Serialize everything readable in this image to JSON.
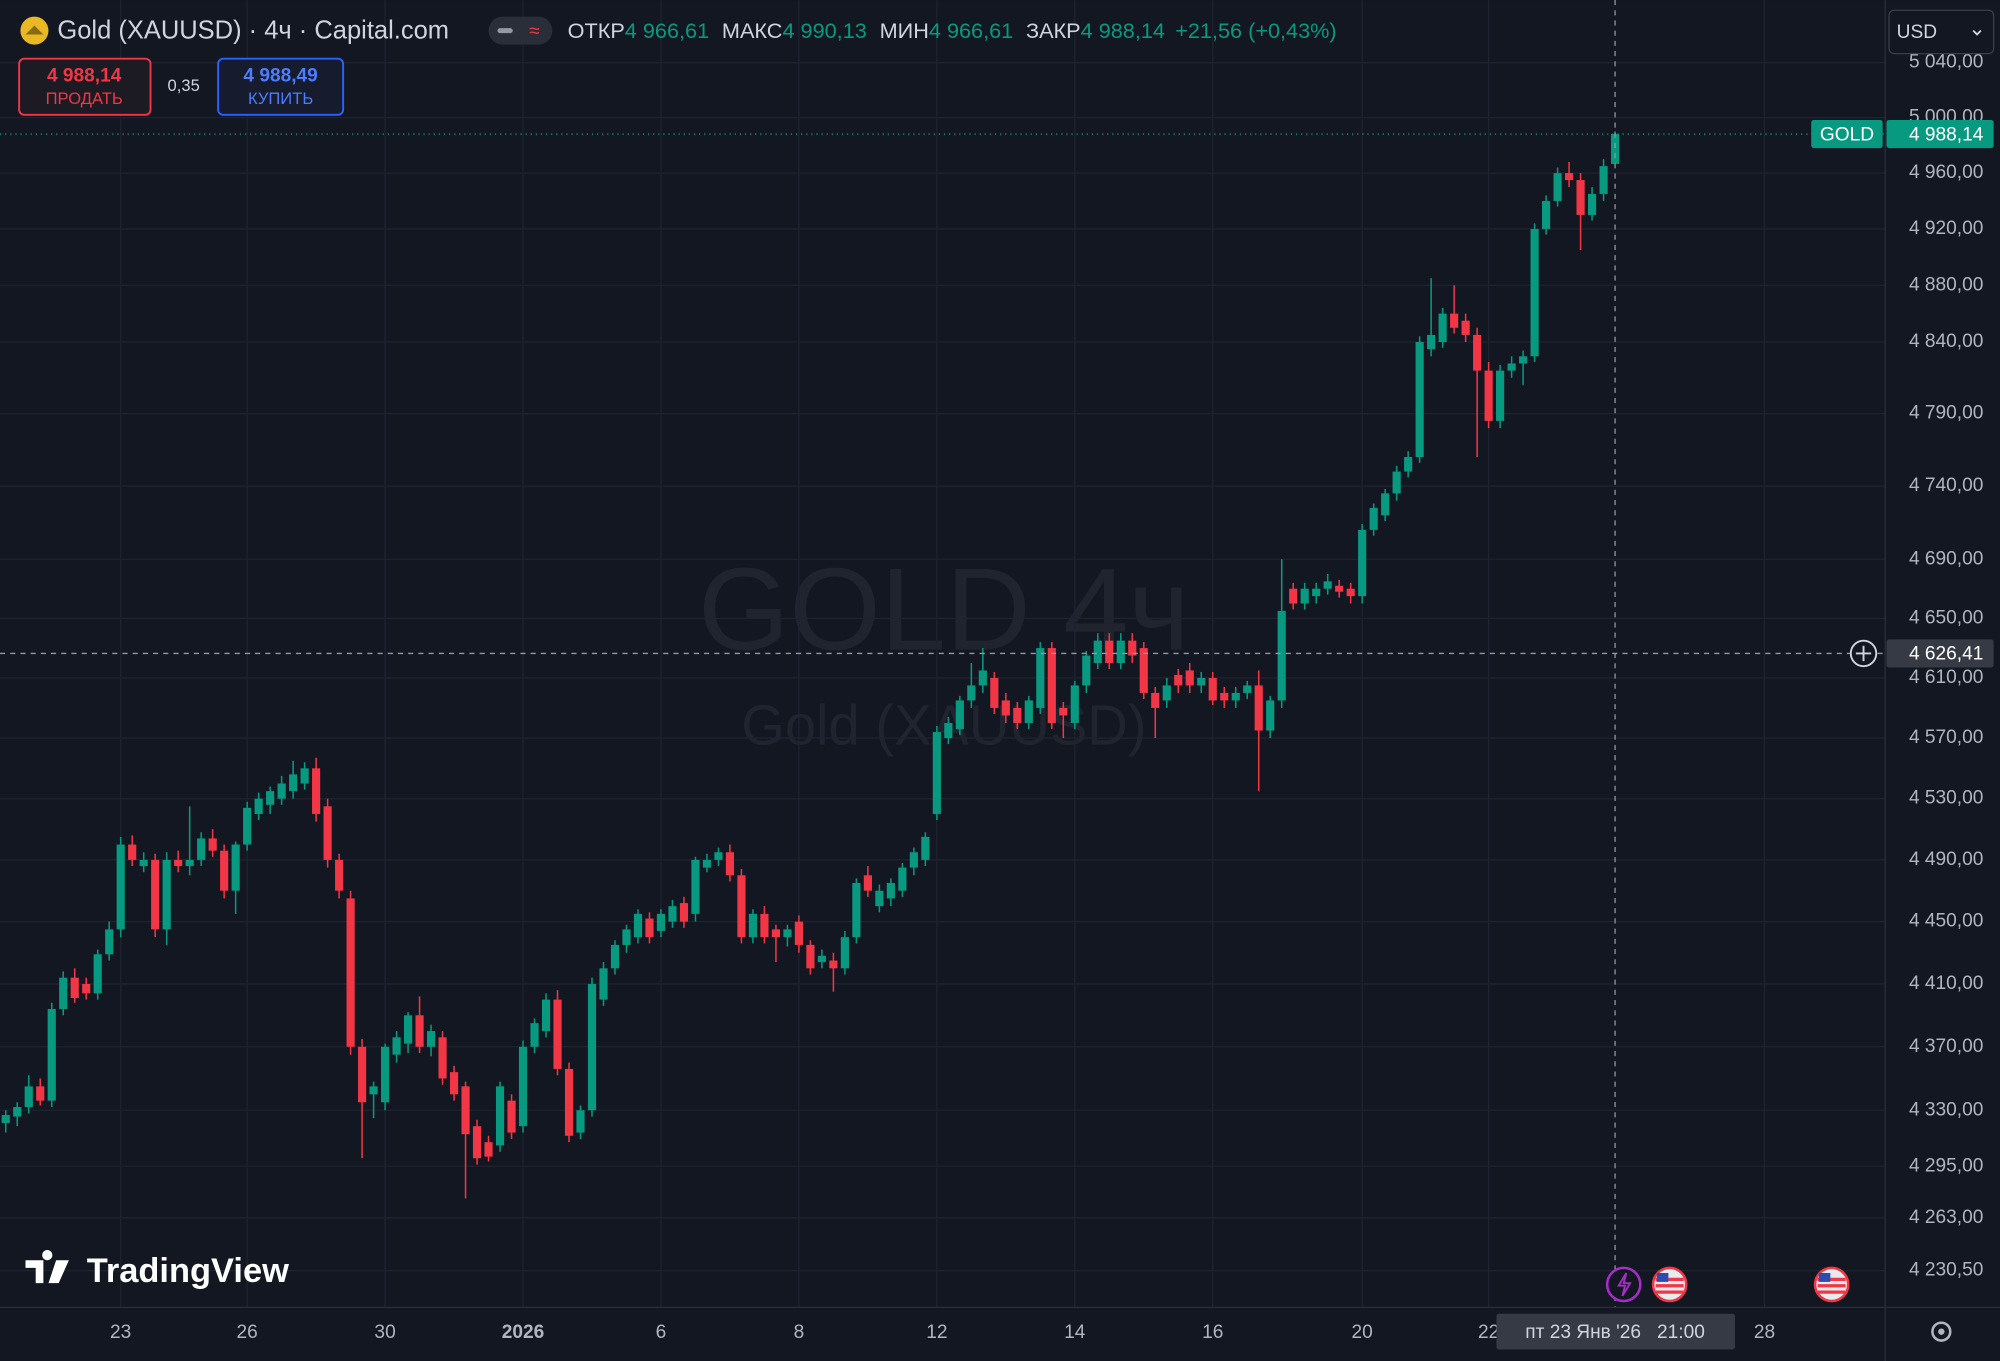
{
  "header": {
    "symbol": "Gold (XAUUSD) · 4ч · Capital.com",
    "stats": [
      {
        "label": "ОТКР",
        "value": "4 966,61"
      },
      {
        "label": "МАКС",
        "value": "4 990,13"
      },
      {
        "label": "МИН",
        "value": "4 966,61"
      },
      {
        "label": "ЗАКР",
        "value": "4 988,14"
      }
    ],
    "change": "+21,56 (+0,43%)"
  },
  "trade": {
    "sell_price": "4 988,14",
    "sell_label": "ПРОДАТЬ",
    "spread": "0,35",
    "buy_price": "4 988,49",
    "buy_label": "КУПИТЬ"
  },
  "currency": "USD",
  "watermark": {
    "title": "GOLD 4ч",
    "subtitle": "Gold (XAUUSD)"
  },
  "brand": "TradingView",
  "chart_data": {
    "type": "candlestick",
    "categories": [
      null,
      null,
      null,
      null,
      null,
      null,
      null,
      null,
      null,
      null,
      "23",
      null,
      null,
      null,
      null,
      null,
      null,
      null,
      null,
      null,
      null,
      "26",
      null,
      null,
      null,
      null,
      null,
      null,
      null,
      null,
      null,
      null,
      null,
      "30",
      null,
      null,
      null,
      null,
      null,
      null,
      null,
      null,
      null,
      null,
      null,
      "2026",
      null,
      null,
      null,
      null,
      null,
      null,
      null,
      null,
      null,
      null,
      null,
      "6",
      null,
      null,
      null,
      null,
      null,
      null,
      null,
      null,
      null,
      null,
      null,
      "8",
      null,
      null,
      null,
      null,
      null,
      null,
      null,
      null,
      null,
      null,
      null,
      "12",
      null,
      null,
      null,
      null,
      null,
      null,
      null,
      null,
      null,
      null,
      null,
      "14",
      null,
      null,
      null,
      null,
      null,
      null,
      null,
      null,
      null,
      null,
      null,
      "16",
      null,
      null,
      null,
      null,
      null,
      null,
      null,
      null,
      null,
      null,
      null,
      null,
      "20",
      null,
      null,
      null,
      null,
      null,
      null,
      null,
      null,
      null,
      null,
      "22",
      null,
      null,
      null,
      null,
      null,
      null,
      null,
      null,
      null,
      null,
      null,
      null,
      null,
      null,
      null,
      null,
      null,
      null,
      null,
      null,
      null,
      null,
      null,
      "28",
      null,
      null,
      null,
      null,
      null,
      null,
      null,
      null,
      null,
      null
    ],
    "ohlc": [
      [
        4322,
        4330,
        4316,
        4327
      ],
      [
        4326,
        4335,
        4320,
        4332
      ],
      [
        4332,
        4352,
        4328,
        4345
      ],
      [
        4345,
        4350,
        4333,
        4336
      ],
      [
        4336,
        4398,
        4332,
        4394
      ],
      [
        4394,
        4418,
        4390,
        4414
      ],
      [
        4414,
        4420,
        4398,
        4401
      ],
      [
        4410,
        4414,
        4400,
        4404
      ],
      [
        4404,
        4432,
        4400,
        4429
      ],
      [
        4429,
        4450,
        4425,
        4445
      ],
      [
        4445,
        4505,
        4440,
        4500
      ],
      [
        4500,
        4506,
        4486,
        4490
      ],
      [
        4486,
        4495,
        4482,
        4490
      ],
      [
        4490,
        4494,
        4440,
        4445
      ],
      [
        4445,
        4495,
        4435,
        4490
      ],
      [
        4490,
        4496,
        4482,
        4486
      ],
      [
        4486,
        4525,
        4480,
        4490
      ],
      [
        4490,
        4508,
        4486,
        4504
      ],
      [
        4504,
        4510,
        4492,
        4496
      ],
      [
        4496,
        4500,
        4465,
        4470
      ],
      [
        4470,
        4502,
        4455,
        4500
      ],
      [
        4500,
        4528,
        4496,
        4524
      ],
      [
        4520,
        4534,
        4516,
        4530
      ],
      [
        4526,
        4538,
        4520,
        4535
      ],
      [
        4530,
        4545,
        4526,
        4540
      ],
      [
        4535,
        4555,
        4530,
        4546
      ],
      [
        4540,
        4554,
        4536,
        4550
      ],
      [
        4550,
        4557,
        4515,
        4520
      ],
      [
        4525,
        4530,
        4485,
        4490
      ],
      [
        4490,
        4494,
        4465,
        4470
      ],
      [
        4465,
        4470,
        4365,
        4370
      ],
      [
        4370,
        4375,
        4300,
        4335
      ],
      [
        4340,
        4348,
        4325,
        4345
      ],
      [
        4335,
        4372,
        4330,
        4370
      ],
      [
        4365,
        4380,
        4360,
        4376
      ],
      [
        4372,
        4392,
        4366,
        4390
      ],
      [
        4390,
        4402,
        4366,
        4370
      ],
      [
        4370,
        4384,
        4364,
        4380
      ],
      [
        4376,
        4380,
        4346,
        4350
      ],
      [
        4354,
        4358,
        4336,
        4340
      ],
      [
        4345,
        4348,
        4275,
        4315
      ],
      [
        4320,
        4324,
        4296,
        4300
      ],
      [
        4310,
        4314,
        4298,
        4301
      ],
      [
        4308,
        4348,
        4304,
        4345
      ],
      [
        4336,
        4340,
        4312,
        4316
      ],
      [
        4320,
        4374,
        4316,
        4370
      ],
      [
        4370,
        4388,
        4366,
        4385
      ],
      [
        4380,
        4404,
        4376,
        4400
      ],
      [
        4400,
        4406,
        4352,
        4356
      ],
      [
        4356,
        4360,
        4310,
        4314
      ],
      [
        4316,
        4333,
        4312,
        4330
      ],
      [
        4330,
        4414,
        4326,
        4410
      ],
      [
        4400,
        4424,
        4396,
        4420
      ],
      [
        4420,
        4438,
        4416,
        4435
      ],
      [
        4435,
        4448,
        4430,
        4445
      ],
      [
        4440,
        4458,
        4436,
        4455
      ],
      [
        4452,
        4456,
        4436,
        4440
      ],
      [
        4444,
        4458,
        4440,
        4455
      ],
      [
        4450,
        4464,
        4446,
        4460
      ],
      [
        4462,
        4466,
        4446,
        4450
      ],
      [
        4455,
        4492,
        4450,
        4490
      ],
      [
        4485,
        4494,
        4482,
        4490
      ],
      [
        4490,
        4498,
        4486,
        4495
      ],
      [
        4495,
        4500,
        4476,
        4480
      ],
      [
        4480,
        4484,
        4436,
        4440
      ],
      [
        4440,
        4458,
        4436,
        4455
      ],
      [
        4455,
        4460,
        4436,
        4440
      ],
      [
        4445,
        4448,
        4424,
        4440
      ],
      [
        4440,
        4448,
        4434,
        4445
      ],
      [
        4450,
        4454,
        4430,
        4435
      ],
      [
        4435,
        4438,
        4416,
        4420
      ],
      [
        4424,
        4432,
        4420,
        4428
      ],
      [
        4425,
        4430,
        4405,
        4420
      ],
      [
        4420,
        4444,
        4416,
        4440
      ],
      [
        4440,
        4478,
        4436,
        4475
      ],
      [
        4480,
        4486,
        4466,
        4470
      ],
      [
        4460,
        4474,
        4456,
        4470
      ],
      [
        4465,
        4478,
        4460,
        4475
      ],
      [
        4470,
        4488,
        4466,
        4485
      ],
      [
        4485,
        4498,
        4480,
        4495
      ],
      [
        4490,
        4508,
        4486,
        4505
      ],
      [
        4520,
        4578,
        4516,
        4574
      ],
      [
        4570,
        4584,
        4566,
        4580
      ],
      [
        4576,
        4598,
        4572,
        4595
      ],
      [
        4595,
        4620,
        4590,
        4605
      ],
      [
        4605,
        4630,
        4600,
        4615
      ],
      [
        4610,
        4614,
        4586,
        4590
      ],
      [
        4595,
        4600,
        4580,
        4585
      ],
      [
        4590,
        4594,
        4576,
        4580
      ],
      [
        4580,
        4598,
        4576,
        4595
      ],
      [
        4590,
        4634,
        4586,
        4630
      ],
      [
        4630,
        4634,
        4576,
        4580
      ],
      [
        4590,
        4594,
        4570,
        4585
      ],
      [
        4580,
        4608,
        4576,
        4605
      ],
      [
        4605,
        4628,
        4600,
        4625
      ],
      [
        4620,
        4640,
        4616,
        4635
      ],
      [
        4635,
        4640,
        4616,
        4620
      ],
      [
        4620,
        4640,
        4616,
        4635
      ],
      [
        4635,
        4640,
        4620,
        4625
      ],
      [
        4630,
        4634,
        4596,
        4600
      ],
      [
        4600,
        4604,
        4570,
        4590
      ],
      [
        4595,
        4610,
        4590,
        4605
      ],
      [
        4612,
        4616,
        4600,
        4605
      ],
      [
        4615,
        4620,
        4600,
        4605
      ],
      [
        4605,
        4614,
        4600,
        4610
      ],
      [
        4610,
        4614,
        4592,
        4595
      ],
      [
        4600,
        4604,
        4590,
        4595
      ],
      [
        4595,
        4604,
        4590,
        4600
      ],
      [
        4600,
        4608,
        4596,
        4605
      ],
      [
        4605,
        4615,
        4535,
        4575
      ],
      [
        4575,
        4598,
        4570,
        4595
      ],
      [
        4595,
        4690,
        4590,
        4655
      ],
      [
        4670,
        4674,
        4656,
        4660
      ],
      [
        4660,
        4674,
        4656,
        4670
      ],
      [
        4665,
        4674,
        4660,
        4670
      ],
      [
        4670,
        4680,
        4666,
        4675
      ],
      [
        4672,
        4676,
        4664,
        4668
      ],
      [
        4670,
        4674,
        4660,
        4665
      ],
      [
        4665,
        4714,
        4660,
        4710
      ],
      [
        4710,
        4728,
        4706,
        4725
      ],
      [
        4720,
        4738,
        4716,
        4735
      ],
      [
        4735,
        4754,
        4730,
        4750
      ],
      [
        4750,
        4764,
        4746,
        4760
      ],
      [
        4760,
        4844,
        4756,
        4840
      ],
      [
        4835,
        4885,
        4830,
        4845
      ],
      [
        4840,
        4864,
        4836,
        4860
      ],
      [
        4860,
        4880,
        4846,
        4850
      ],
      [
        4855,
        4860,
        4840,
        4845
      ],
      [
        4845,
        4850,
        4760,
        4820
      ],
      [
        4820,
        4826,
        4780,
        4785
      ],
      [
        4785,
        4824,
        4780,
        4820
      ],
      [
        4820,
        4830,
        4815,
        4825
      ],
      [
        4825,
        4834,
        4810,
        4830
      ],
      [
        4830,
        4924,
        4826,
        4920
      ],
      [
        4920,
        4944,
        4916,
        4940
      ],
      [
        4940,
        4964,
        4936,
        4960
      ],
      [
        4960,
        4968,
        4950,
        4955
      ],
      [
        4955,
        4960,
        4905,
        4930
      ],
      [
        4930,
        4950,
        4926,
        4945
      ],
      [
        4945,
        4970,
        4940,
        4965
      ],
      [
        4966.61,
        4990.13,
        4966.61,
        4988.14
      ],
      null,
      null,
      null,
      null,
      null,
      null,
      null,
      null,
      null,
      null,
      null,
      null,
      null,
      null,
      null,
      null,
      null,
      null,
      null,
      null,
      null,
      null,
      null
    ],
    "up_color": "#089981",
    "down_color": "#f23645",
    "log_y": true,
    "grid": true,
    "ylim": [
      4208,
      5086
    ],
    "yticks": [
      {
        "value": 4230.5,
        "label": "4 230,50"
      },
      {
        "value": 4263,
        "label": "4 263,00"
      },
      {
        "value": 4295,
        "label": "4 295,00"
      },
      {
        "value": 4330,
        "label": "4 330,00"
      },
      {
        "value": 4370,
        "label": "4 370,00"
      },
      {
        "value": 4410,
        "label": "4 410,00"
      },
      {
        "value": 4450,
        "label": "4 450,00"
      },
      {
        "value": 4490,
        "label": "4 490,00"
      },
      {
        "value": 4530,
        "label": "4 530,00"
      },
      {
        "value": 4570,
        "label": "4 570,00"
      },
      {
        "value": 4610,
        "label": "4 610,00"
      },
      {
        "value": 4650,
        "label": "4 650,00"
      },
      {
        "value": 4690,
        "label": "4 690,00"
      },
      {
        "value": 4740,
        "label": "4 740,00"
      },
      {
        "value": 4790,
        "label": "4 790,00"
      },
      {
        "value": 4840,
        "label": "4 840,00"
      },
      {
        "value": 4880,
        "label": "4 880,00"
      },
      {
        "value": 4920,
        "label": "4 920,00"
      },
      {
        "value": 4960,
        "label": "4 960,00"
      },
      {
        "value": 5000,
        "label": "5 000,00"
      },
      {
        "value": 5040,
        "label": "5 040,00"
      }
    ],
    "last_price": {
      "name": "GOLD",
      "label": "4 988,14"
    },
    "crosshair": {
      "price": 4626.41,
      "price_label": "4 626,41",
      "time_label": "пт 23 Янв '26   21:00"
    }
  }
}
